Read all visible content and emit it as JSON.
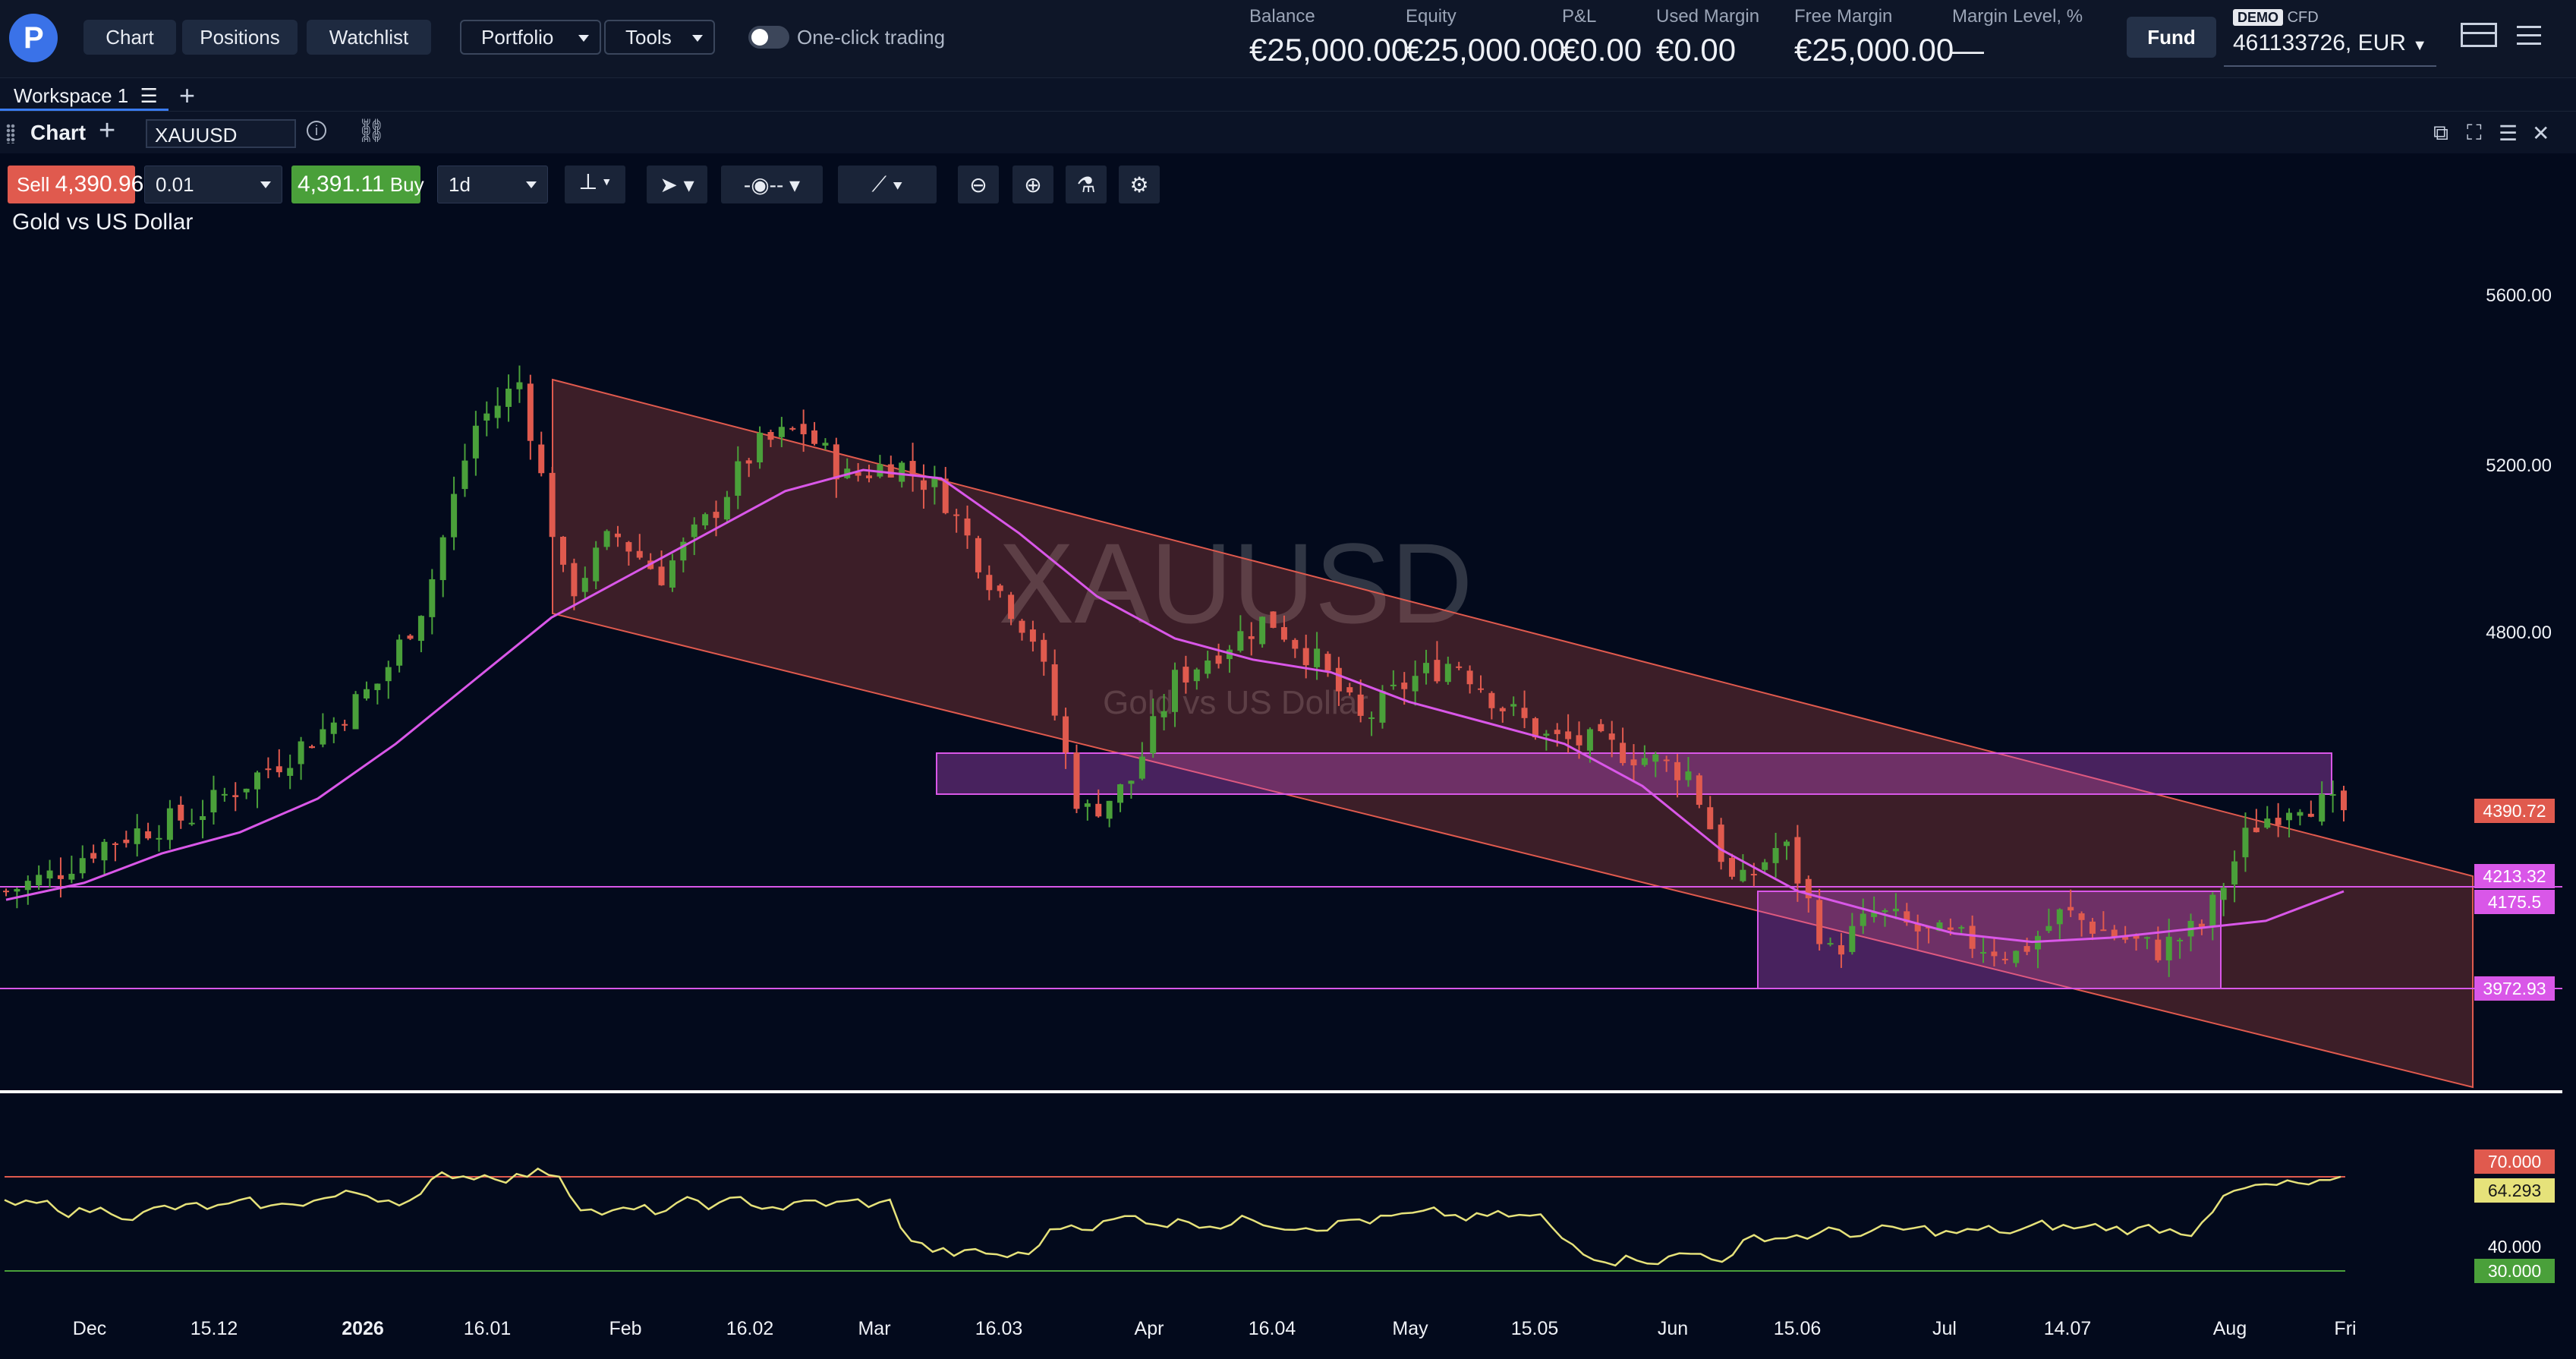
{
  "nav": {
    "chart": "Chart",
    "positions": "Positions",
    "watchlist": "Watchlist",
    "portfolio": "Portfolio",
    "tools": "Tools",
    "one_click": "One-click trading"
  },
  "account": {
    "balance_label": "Balance",
    "balance": "€25,000.00",
    "equity_label": "Equity",
    "equity": "€25,000.00",
    "pnl_label": "P&L",
    "pnl": "€0.00",
    "used_margin_label": "Used Margin",
    "used_margin": "€0.00",
    "free_margin_label": "Free Margin",
    "free_margin": "€25,000.00",
    "margin_level_label": "Margin Level, %",
    "margin_level": "—",
    "fund": "Fund",
    "demo_badge": "DEMO",
    "cfd": "CFD",
    "account_id": "461133726, EUR"
  },
  "workspace": {
    "tab": "Workspace 1"
  },
  "chart_header": {
    "tab": "Chart",
    "symbol": "XAUUSD"
  },
  "trade": {
    "sell_label": "Sell",
    "sell_price": "4,390.96",
    "volume": "0.01",
    "buy_price": "4,391.11",
    "buy_label": "Buy",
    "timeframe": "1d"
  },
  "instrument": {
    "name": "Gold vs US Dollar",
    "watermark_symbol": "XAUUSD",
    "watermark_name": "Gold vs US Dollar"
  },
  "price_axis": {
    "ticks": [
      "5600.00",
      "5200.00",
      "4800.00"
    ],
    "labels": [
      {
        "text": "4390.72",
        "color": "#e05a4e"
      },
      {
        "text": "4213.32",
        "color": "#d957e8"
      },
      {
        "text": "4175.5",
        "color": "#d957e8"
      },
      {
        "text": "3972.93",
        "color": "#d957e8"
      }
    ]
  },
  "rsi_axis": {
    "labels": [
      {
        "text": "70.000",
        "color": "#e05a4e"
      },
      {
        "text": "64.293",
        "color": "#e6e27a"
      },
      {
        "text": "40.000",
        "color": ""
      },
      {
        "text": "30.000",
        "color": "#4aa03a"
      }
    ]
  },
  "time_axis": [
    "Dec",
    "15.12",
    "2026",
    "16.01",
    "Feb",
    "16.02",
    "Mar",
    "16.03",
    "Apr",
    "16.04",
    "May",
    "15.05",
    "Jun",
    "15.06",
    "Jul",
    "14.07",
    "Aug",
    "Fri"
  ],
  "colors": {
    "up": "#4aa03a",
    "down": "#e05a4e",
    "ma": "#d957e8",
    "channel": "#e05a4e",
    "zone": "#d957e8",
    "rsi": "#e6e27a"
  },
  "chart_data": {
    "type": "candlestick",
    "symbol": "XAUUSD",
    "timeframe": "1d",
    "x": [
      "Dec",
      "15.12",
      "2026",
      "16.01",
      "Feb",
      "16.02",
      "Mar",
      "16.03",
      "Apr",
      "16.04",
      "May",
      "15.05",
      "Jun",
      "15.06",
      "Jul",
      "14.07",
      "Aug",
      "Fri"
    ],
    "close_path": [
      4200,
      4240,
      4310,
      4350,
      4380,
      4450,
      4520,
      4600,
      4700,
      4900,
      5300,
      5410,
      4900,
      5050,
      4950,
      5080,
      5250,
      5300,
      5180,
      5220,
      5150,
      4950,
      4800,
      4380,
      4450,
      4700,
      4780,
      4850,
      4750,
      4600,
      4700,
      4750,
      4640,
      4560,
      4550,
      4520,
      4480,
      4200,
      4320,
      4050,
      4150,
      4100,
      4080,
      4050,
      4150,
      4100,
      4060,
      4120,
      4350,
      4420,
      4390
    ],
    "ylim": [
      3750,
      5700
    ],
    "ma_path": [
      4180,
      4220,
      4290,
      4340,
      4420,
      4550,
      4700,
      4850,
      4950,
      5050,
      5150,
      5200,
      5180,
      5050,
      4900,
      4800,
      4750,
      4720,
      4650,
      4600,
      4550,
      4450,
      4300,
      4200,
      4150,
      4100,
      4080,
      4090,
      4110,
      4130,
      4200
    ],
    "levels": [
      4213.32,
      3972.93
    ],
    "last_price": 4390.72,
    "rsi": {
      "ylim": [
        20,
        90
      ],
      "overbought": 70,
      "oversold": 30,
      "last": 64.293
    }
  }
}
